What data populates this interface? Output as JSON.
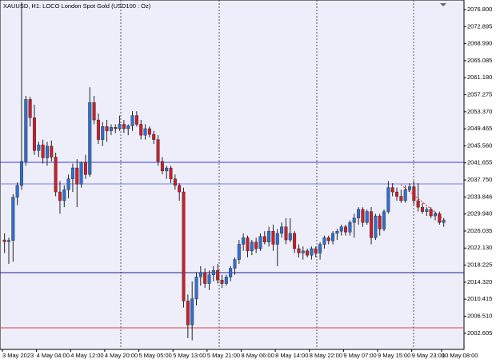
{
  "chart_data": {
    "type": "candlestick",
    "title": "XAUUSD, H1:  LOCO London Spot Gold (USD100 : Oz)",
    "categories": [
      "3 May 2023",
      null,
      null,
      null,
      null,
      null,
      null,
      null,
      "4 May 04:00",
      null,
      null,
      null,
      null,
      null,
      null,
      null,
      "4 May 12:00",
      null,
      null,
      null,
      null,
      null,
      null,
      null,
      "4 May 20:00",
      null,
      null,
      null,
      null,
      null,
      null,
      null,
      "5 May 05:00",
      null,
      null,
      null,
      null,
      null,
      null,
      null,
      "5 May 13:00",
      null,
      null,
      null,
      null,
      null,
      null,
      null,
      "5 May 21:00",
      null,
      null,
      null,
      null,
      null,
      null,
      null,
      "8 May 06:00",
      null,
      null,
      null,
      null,
      null,
      null,
      null,
      "8 May 14:00",
      null,
      null,
      null,
      null,
      null,
      null,
      null,
      "8 May 22:00",
      null,
      null,
      null,
      null,
      null,
      null,
      null,
      "9 May 07:00",
      null,
      null,
      null,
      null,
      null,
      null,
      null,
      "9 May 15:00",
      null,
      null,
      null,
      null,
      null,
      null,
      null,
      "9 May 23:00",
      null,
      null,
      null,
      null,
      null,
      null,
      "10 May 08:00"
    ],
    "open": [
      2024.0,
      2023.6,
      2023.9,
      2033.8,
      2036.5,
      2042.0,
      2056.2,
      2052.0,
      2044.5,
      2045.8,
      2042.8,
      2045.5,
      2043.0,
      2035.0,
      2033.0,
      2035.5,
      2038.0,
      2040.5,
      2036.8,
      2041.8,
      2039.0,
      2055.5,
      2051.5,
      2047.0,
      2050.0,
      2049.0,
      2049.8,
      2049.5,
      2050.5,
      2049.5,
      2050.2,
      2052.5,
      2050.5,
      2048.0,
      2049.5,
      2048.2,
      2047.0,
      2042.0,
      2039.8,
      2040.5,
      2038.0,
      2036.5,
      2035.0,
      2010.0,
      2004.5,
      2010.5,
      2015.5,
      2016.5,
      2014.0,
      2016.0,
      2017.0,
      2014.8,
      2014.0,
      2015.5,
      2017.5,
      2019.5,
      2023.0,
      2024.5,
      2021.5,
      2023.5,
      2022.0,
      2024.8,
      2023.5,
      2026.0,
      2023.0,
      2025.5,
      2027.0,
      2024.0,
      2025.5,
      2022.0,
      2021.0,
      2021.5,
      2020.5,
      2022.0,
      2021.0,
      2023.0,
      2024.5,
      2023.8,
      2025.5,
      2026.0,
      2027.0,
      2025.8,
      2028.0,
      2029.0,
      2031.0,
      2028.0,
      2030.5,
      2024.5,
      2029.5,
      2026.5,
      2030.5,
      2036.0,
      2035.0,
      2034.0,
      2033.0,
      2035.5,
      2036.2,
      2033.0,
      2031.5,
      2030.5,
      2031.0,
      2029.5,
      2030.0,
      2028.0
    ],
    "high": [
      2025.5,
      2024.5,
      2034.5,
      2037.2,
      2078.5,
      2057.0,
      2056.8,
      2055.0,
      2046.5,
      2047.0,
      2046.5,
      2046.8,
      2044.0,
      2037.5,
      2036.5,
      2039.0,
      2041.5,
      2042.5,
      2042.0,
      2043.5,
      2059.0,
      2057.0,
      2053.0,
      2051.0,
      2051.5,
      2050.5,
      2050.5,
      2052.5,
      2051.5,
      2050.5,
      2053.5,
      2053.5,
      2051.5,
      2050.5,
      2050.0,
      2049.0,
      2048.0,
      2043.0,
      2041.0,
      2041.0,
      2039.0,
      2037.0,
      2036.0,
      2011.5,
      2014.5,
      2016.5,
      2018.0,
      2017.5,
      2017.0,
      2018.0,
      2018.5,
      2016.0,
      2016.0,
      2018.0,
      2020.0,
      2024.0,
      2025.5,
      2025.0,
      2024.0,
      2024.5,
      2025.5,
      2026.0,
      2027.0,
      2027.5,
      2026.5,
      2028.0,
      2029.0,
      2029.0,
      2026.0,
      2023.0,
      2022.5,
      2022.0,
      2022.5,
      2022.5,
      2023.5,
      2025.0,
      2025.0,
      2026.0,
      2026.5,
      2027.5,
      2027.5,
      2028.5,
      2030.0,
      2031.5,
      2031.5,
      2031.0,
      2031.5,
      2030.0,
      2030.0,
      2031.0,
      2037.5,
      2037.0,
      2036.0,
      2035.5,
      2036.5,
      2037.0,
      2037.5,
      2037.0,
      2032.5,
      2031.5,
      2031.5,
      2030.5,
      2030.5,
      2029.0
    ],
    "low": [
      2021.0,
      2018.5,
      2019.0,
      2032.0,
      2035.5,
      2041.0,
      2050.0,
      2043.5,
      2043.0,
      2041.5,
      2041.0,
      2042.0,
      2034.0,
      2030.0,
      2031.5,
      2033.5,
      2035.0,
      2031.5,
      2036.0,
      2038.0,
      2038.5,
      2050.5,
      2046.0,
      2045.5,
      2046.5,
      2048.0,
      2048.5,
      2049.0,
      2048.5,
      2048.0,
      2049.0,
      2050.0,
      2047.0,
      2047.0,
      2047.5,
      2046.0,
      2041.0,
      2039.0,
      2038.0,
      2037.0,
      2035.5,
      2033.0,
      2008.5,
      2001.5,
      2001.0,
      2009.0,
      2013.5,
      2013.0,
      2012.5,
      2014.5,
      2014.0,
      2013.0,
      2013.5,
      2014.5,
      2016.0,
      2018.5,
      2021.5,
      2020.0,
      2020.5,
      2021.0,
      2021.5,
      2023.0,
      2022.5,
      2021.5,
      2018.0,
      2024.5,
      2023.0,
      2023.5,
      2021.0,
      2020.0,
      2019.5,
      2020.0,
      2019.5,
      2020.0,
      2019.5,
      2022.0,
      2023.0,
      2023.0,
      2024.0,
      2025.0,
      2025.0,
      2025.0,
      2024.5,
      2027.5,
      2027.0,
      2027.5,
      2023.0,
      2024.0,
      2025.0,
      2026.0,
      2030.0,
      2034.0,
      2033.0,
      2032.5,
      2032.5,
      2035.0,
      2032.0,
      2030.5,
      2030.0,
      2029.5,
      2029.0,
      2028.5,
      2027.5,
      2027.0
    ],
    "close": [
      2023.6,
      2023.9,
      2033.8,
      2036.5,
      2042.0,
      2056.2,
      2052.0,
      2044.5,
      2045.8,
      2042.8,
      2045.5,
      2043.0,
      2035.0,
      2033.0,
      2035.5,
      2038.0,
      2040.5,
      2036.8,
      2041.8,
      2039.0,
      2055.5,
      2051.5,
      2047.0,
      2050.0,
      2049.0,
      2049.8,
      2049.5,
      2050.5,
      2049.5,
      2050.2,
      2052.5,
      2050.5,
      2048.0,
      2049.5,
      2048.2,
      2047.0,
      2042.0,
      2039.8,
      2040.5,
      2038.0,
      2036.5,
      2035.0,
      2010.0,
      2004.5,
      2010.5,
      2015.5,
      2016.5,
      2014.0,
      2016.0,
      2017.0,
      2014.8,
      2014.0,
      2015.5,
      2017.5,
      2019.5,
      2023.0,
      2024.5,
      2021.5,
      2023.5,
      2022.0,
      2024.8,
      2023.5,
      2026.0,
      2023.0,
      2025.5,
      2027.0,
      2024.0,
      2025.5,
      2022.0,
      2021.0,
      2021.5,
      2020.5,
      2022.0,
      2021.0,
      2023.0,
      2024.5,
      2023.8,
      2025.5,
      2026.0,
      2027.0,
      2025.8,
      2028.0,
      2029.0,
      2031.0,
      2028.0,
      2030.5,
      2024.5,
      2029.5,
      2026.5,
      2030.5,
      2036.0,
      2035.0,
      2034.0,
      2033.0,
      2035.5,
      2036.2,
      2033.0,
      2031.5,
      2030.5,
      2031.0,
      2029.5,
      2030.0,
      2028.0,
      2028.5
    ],
    "up_color": "#2f6fd0",
    "down_color": "#c8202a",
    "ylim": [
      1998.9,
      2079.0
    ],
    "yticks": [
      {
        "value": 2076.8,
        "label": "2076.800"
      },
      2072.895,
      {
        "value": 2068.99,
        "label": "2068.990"
      },
      2065.085,
      {
        "value": 2061.18,
        "label": "2061.180"
      },
      2057.275,
      {
        "value": 2053.37,
        "label": "2053.370"
      },
      2049.465,
      {
        "value": 2045.56,
        "label": "2045.560"
      },
      2041.655,
      {
        "value": 2037.75,
        "label": "2037.750"
      },
      2033.846,
      {
        "value": 2029.94,
        "label": "2029.940"
      },
      2026.035,
      {
        "value": 2022.13,
        "label": "2022.130"
      },
      2018.225,
      {
        "value": 2014.32,
        "label": "2014.320"
      },
      2010.415,
      {
        "value": 2006.51,
        "label": "2006.510"
      },
      2002.605
    ],
    "levels": [
      {
        "value": 2041.8,
        "color": "#3c3cdc"
      },
      {
        "value": 2036.85,
        "color": "#7a7af0"
      },
      {
        "value": 2016.5,
        "color": "#1c1c8c"
      },
      {
        "value": 2003.85,
        "color": "#e04040"
      }
    ]
  }
}
